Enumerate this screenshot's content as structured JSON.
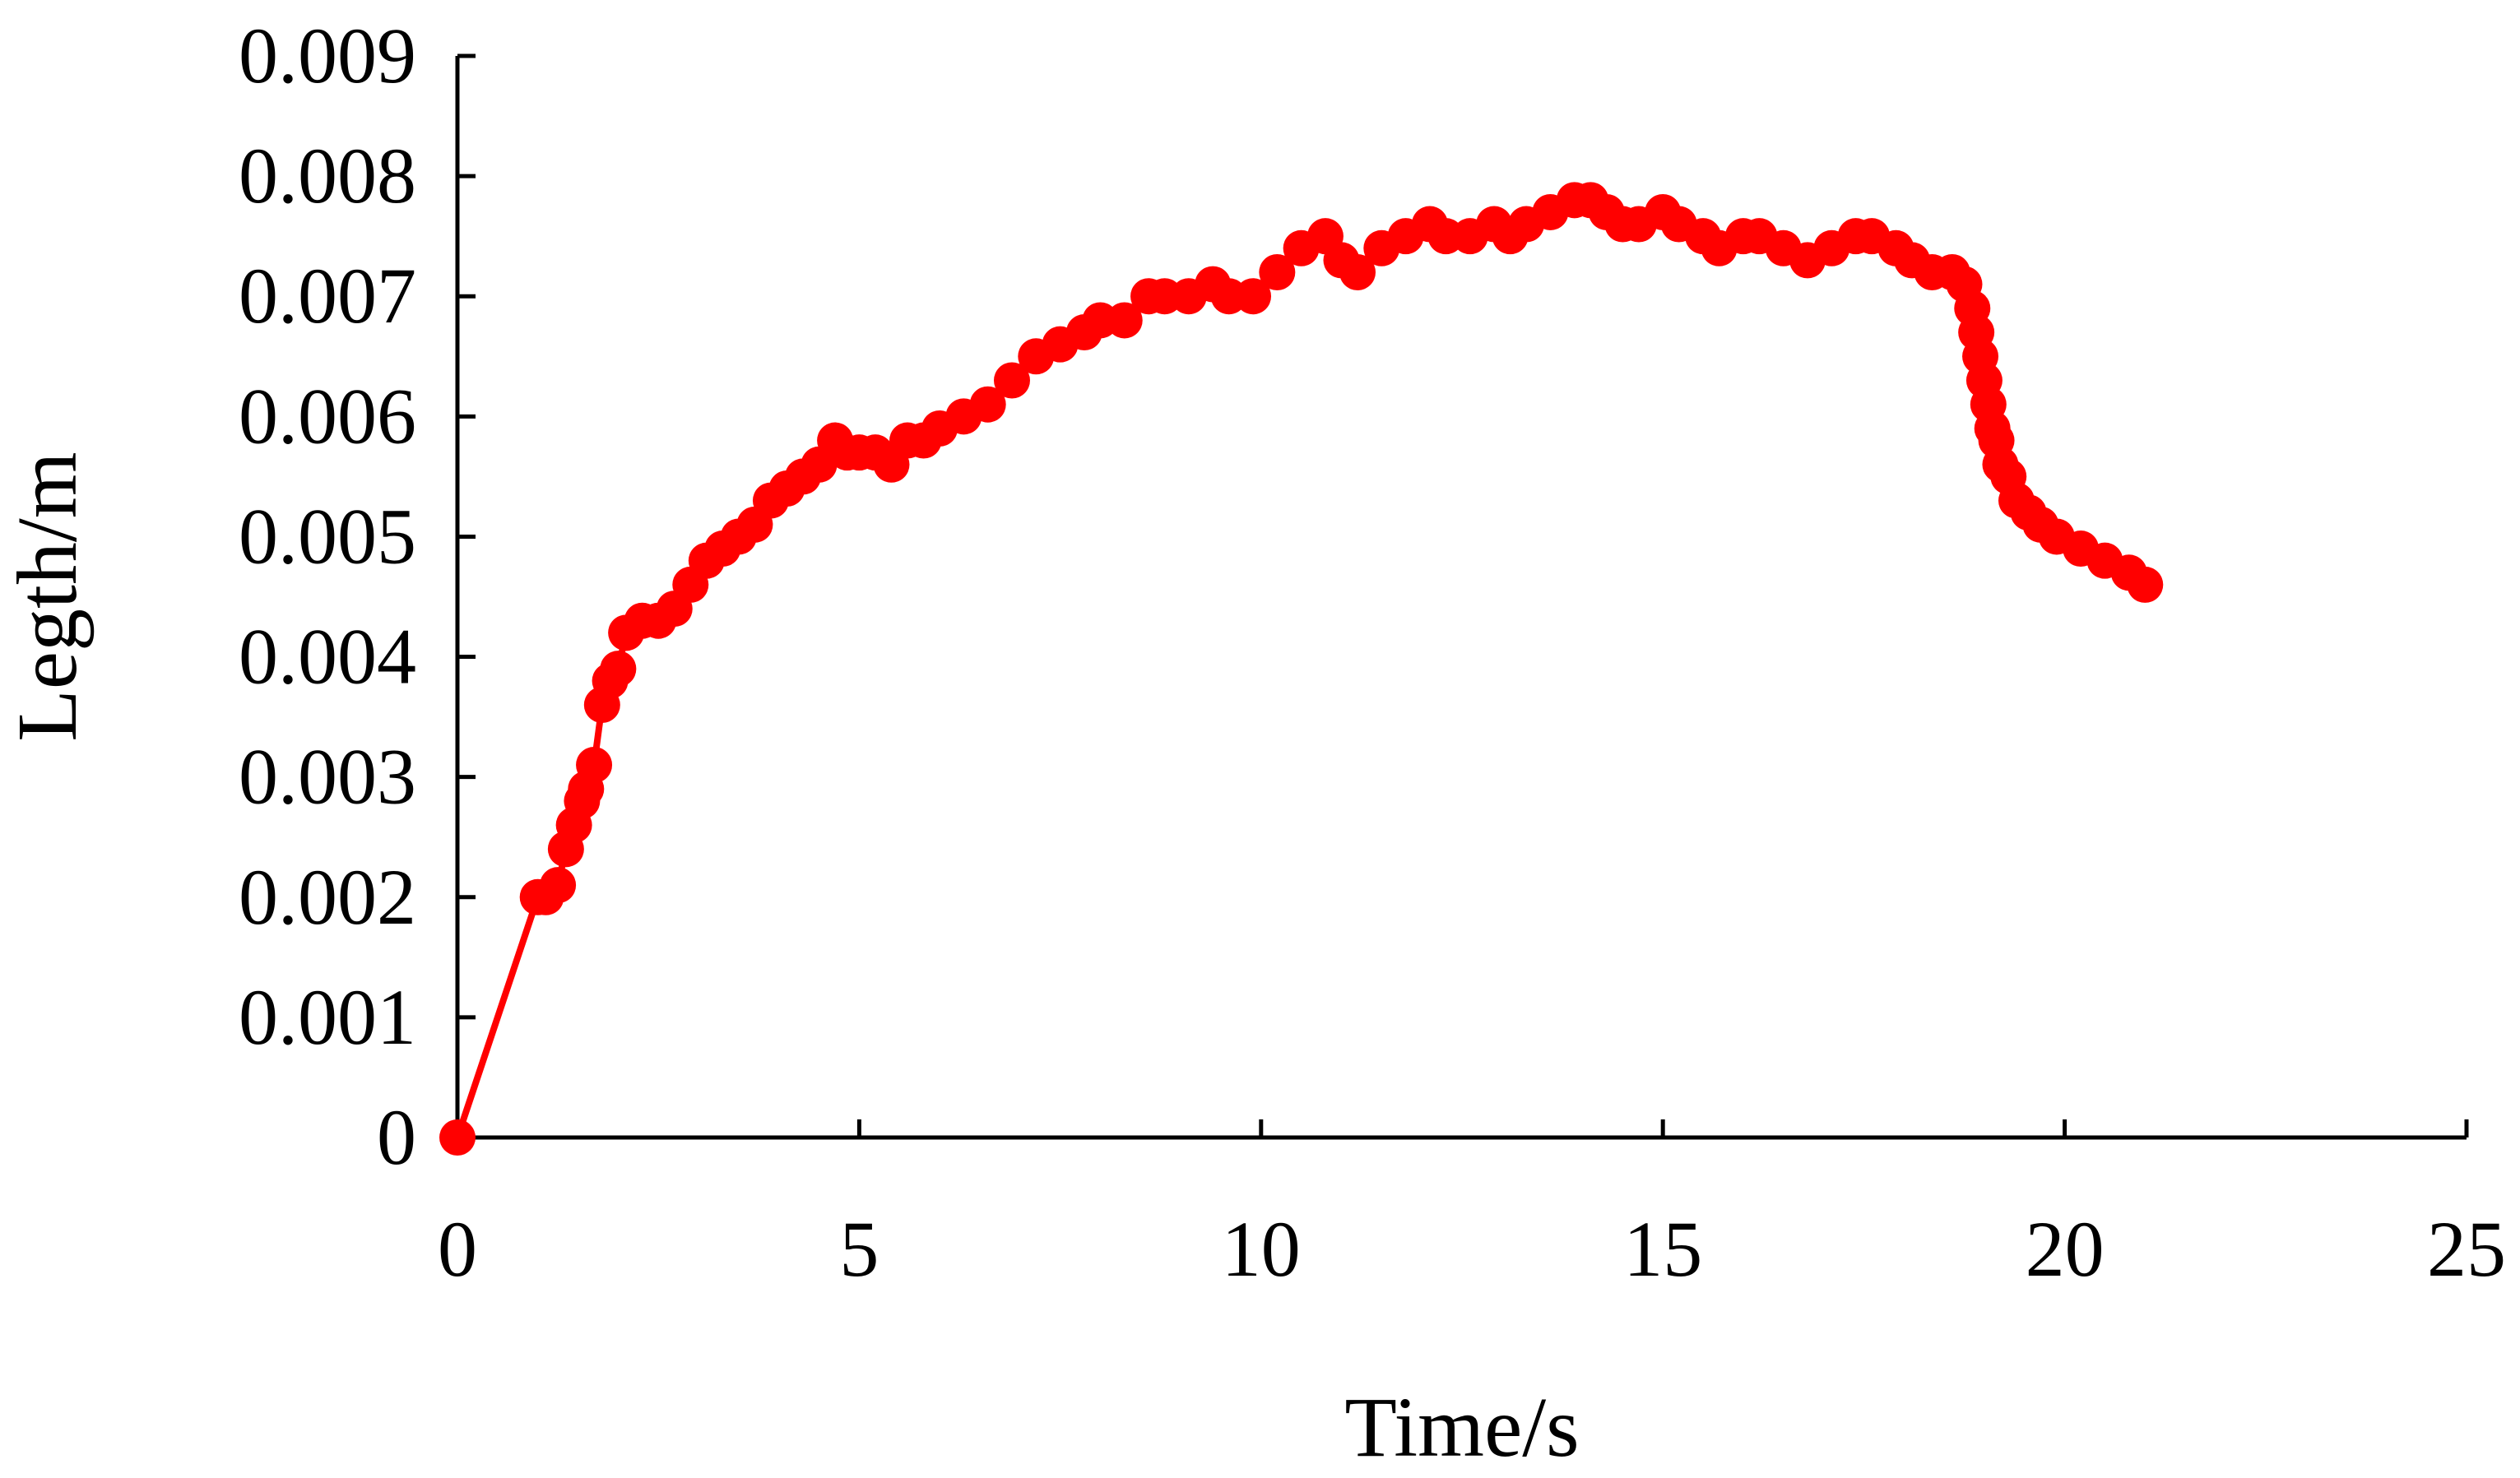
{
  "chart_data": {
    "type": "line",
    "title": "",
    "xlabel": "Time/s",
    "ylabel": "Legth/m",
    "xlim": [
      0,
      25
    ],
    "ylim": [
      0,
      0.009
    ],
    "x_ticks": [
      "0",
      "5",
      "10",
      "15",
      "20",
      "25"
    ],
    "y_ticks": [
      "0",
      "0.001",
      "0.002",
      "0.003",
      "0.004",
      "0.005",
      "0.006",
      "0.007",
      "0.008",
      "0.009"
    ],
    "grid": false,
    "legend": "none",
    "series": [
      {
        "color": "#ff0000",
        "marker": "circle",
        "x": [
          0,
          1.0,
          1.1,
          1.25,
          1.35,
          1.45,
          1.55,
          1.6,
          1.7,
          1.8,
          1.9,
          2.0,
          2.1,
          2.3,
          2.5,
          2.7,
          2.9,
          3.1,
          3.3,
          3.5,
          3.7,
          3.9,
          4.1,
          4.3,
          4.5,
          4.7,
          4.85,
          5.0,
          5.2,
          5.4,
          5.6,
          5.8,
          6.0,
          6.3,
          6.6,
          6.9,
          7.2,
          7.5,
          7.8,
          8.0,
          8.3,
          8.6,
          8.8,
          9.1,
          9.4,
          9.6,
          9.9,
          10.2,
          10.5,
          10.8,
          11.0,
          11.2,
          11.5,
          11.8,
          12.1,
          12.3,
          12.6,
          12.9,
          13.1,
          13.3,
          13.6,
          13.9,
          14.1,
          14.3,
          14.5,
          14.7,
          15.0,
          15.2,
          15.5,
          15.7,
          16.0,
          16.2,
          16.5,
          16.8,
          17.1,
          17.4,
          17.6,
          17.9,
          18.1,
          18.35,
          18.6,
          18.75,
          18.85,
          18.9,
          18.95,
          19.0,
          19.05,
          19.1,
          19.15,
          19.2,
          19.3,
          19.4,
          19.55,
          19.7,
          19.9,
          20.2,
          20.5,
          20.8,
          21.0
        ],
        "y": [
          0,
          0.002,
          0.002,
          0.0021,
          0.0024,
          0.0026,
          0.0028,
          0.0029,
          0.0031,
          0.0036,
          0.0038,
          0.0039,
          0.0042,
          0.0043,
          0.0043,
          0.0044,
          0.0046,
          0.0048,
          0.0049,
          0.005,
          0.0051,
          0.0053,
          0.0054,
          0.0055,
          0.0056,
          0.0058,
          0.0057,
          0.0057,
          0.0057,
          0.0056,
          0.0058,
          0.0058,
          0.0059,
          0.006,
          0.0061,
          0.0063,
          0.0065,
          0.0066,
          0.0067,
          0.0068,
          0.0068,
          0.007,
          0.007,
          0.007,
          0.0071,
          0.007,
          0.007,
          0.0072,
          0.0074,
          0.0075,
          0.0073,
          0.0072,
          0.0074,
          0.0075,
          0.0076,
          0.0075,
          0.0075,
          0.0076,
          0.0075,
          0.0076,
          0.0077,
          0.0078,
          0.0078,
          0.0077,
          0.0076,
          0.0076,
          0.0077,
          0.0076,
          0.0075,
          0.0074,
          0.0075,
          0.0075,
          0.0074,
          0.0073,
          0.0074,
          0.0075,
          0.0075,
          0.0074,
          0.0073,
          0.0072,
          0.0072,
          0.0071,
          0.0069,
          0.0067,
          0.0065,
          0.0063,
          0.0061,
          0.0059,
          0.0058,
          0.0056,
          0.0055,
          0.0053,
          0.0052,
          0.0051,
          0.005,
          0.0049,
          0.0048,
          0.0047,
          0.0046
        ]
      }
    ]
  }
}
